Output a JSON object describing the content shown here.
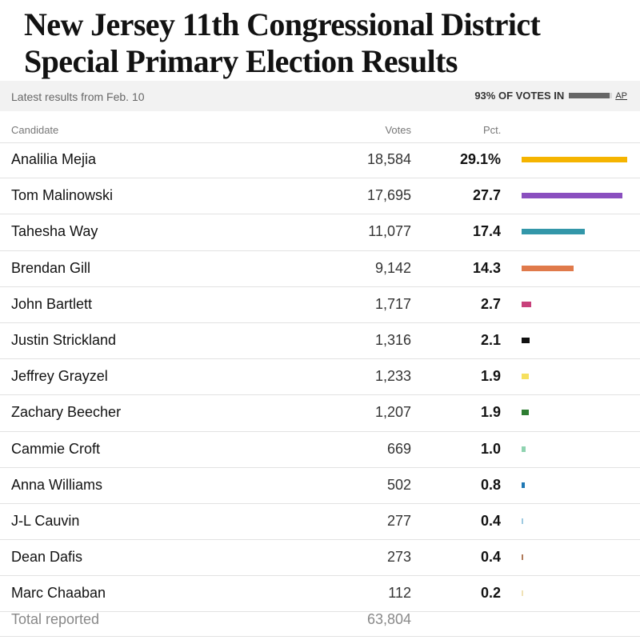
{
  "title": "New Jersey 11th Congressional District Special Primary Election Results",
  "meta": {
    "latest": "Latest results from Feb. 10",
    "votes_in": "93% OF VOTES IN",
    "votes_in_fraction": 0.93,
    "source": "AP"
  },
  "table": {
    "headers": {
      "candidate": "Candidate",
      "votes": "Votes",
      "pct": "Pct."
    },
    "rows": [
      {
        "candidate": "Analilia Mejia",
        "votes": "18,584",
        "pct": "29.1%",
        "pct_value": 29.1,
        "color": "#f5b400"
      },
      {
        "candidate": "Tom Malinowski",
        "votes": "17,695",
        "pct": "27.7",
        "pct_value": 27.7,
        "color": "#8a4fbf"
      },
      {
        "candidate": "Tahesha Way",
        "votes": "11,077",
        "pct": "17.4",
        "pct_value": 17.4,
        "color": "#3397a9"
      },
      {
        "candidate": "Brendan Gill",
        "votes": "9,142",
        "pct": "14.3",
        "pct_value": 14.3,
        "color": "#e07a4b"
      },
      {
        "candidate": "John Bartlett",
        "votes": "1,717",
        "pct": "2.7",
        "pct_value": 2.7,
        "color": "#c8417b"
      },
      {
        "candidate": "Justin Strickland",
        "votes": "1,316",
        "pct": "2.1",
        "pct_value": 2.1,
        "color": "#111111"
      },
      {
        "candidate": "Jeffrey Grayzel",
        "votes": "1,233",
        "pct": "1.9",
        "pct_value": 1.9,
        "color": "#f6e05e"
      },
      {
        "candidate": "Zachary Beecher",
        "votes": "1,207",
        "pct": "1.9",
        "pct_value": 1.9,
        "color": "#2e7d32"
      },
      {
        "candidate": "Cammie Croft",
        "votes": "669",
        "pct": "1.0",
        "pct_value": 1.0,
        "color": "#8fd3b0"
      },
      {
        "candidate": "Anna Williams",
        "votes": "502",
        "pct": "0.8",
        "pct_value": 0.8,
        "color": "#1f78b4"
      },
      {
        "candidate": "J-L Cauvin",
        "votes": "277",
        "pct": "0.4",
        "pct_value": 0.4,
        "color": "#9ecae1"
      },
      {
        "candidate": "Dean Dafis",
        "votes": "273",
        "pct": "0.4",
        "pct_value": 0.4,
        "color": "#b07a5a"
      },
      {
        "candidate": "Marc Chaaban",
        "votes": "112",
        "pct": "0.2",
        "pct_value": 0.2,
        "color": "#f0e2b6"
      }
    ],
    "total_label": "Total reported",
    "total_votes": "63,804"
  }
}
